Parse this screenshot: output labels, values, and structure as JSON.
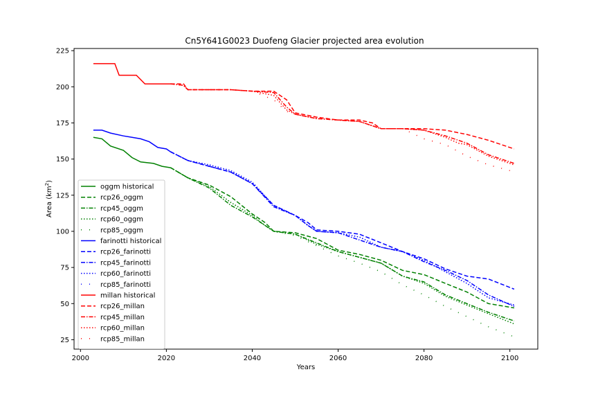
{
  "chart_data": {
    "type": "line",
    "title": "Cn5Y641G0023 Duofeng Glacier projected area evolution",
    "xlabel": "Years",
    "ylabel_main": "Area (km",
    "ylabel_sup": "2",
    "ylabel_close": ")",
    "xlim": [
      1998.5,
      2106.5
    ],
    "ylim": [
      18.5,
      226.5
    ],
    "xticks": [
      2000,
      2020,
      2040,
      2060,
      2080,
      2100
    ],
    "yticks": [
      25,
      50,
      75,
      100,
      125,
      150,
      175,
      200,
      225
    ],
    "legend_position": "lower-left",
    "series": [
      {
        "name": "oggm historical",
        "color": "#008000",
        "dash": "solid",
        "x": [
          2003,
          2005,
          2007,
          2010,
          2012,
          2014,
          2017,
          2019,
          2021
        ],
        "y": [
          165,
          164,
          159,
          156,
          151,
          148,
          147,
          145,
          144
        ]
      },
      {
        "name": "rcp26_oggm",
        "color": "#008000",
        "dash": "dashed",
        "x": [
          2021,
          2025,
          2030,
          2035,
          2040,
          2043,
          2045,
          2050,
          2055,
          2060,
          2065,
          2070,
          2075,
          2080,
          2085,
          2090,
          2095,
          2101
        ],
        "y": [
          144,
          137,
          132,
          124,
          112,
          106,
          100,
          99,
          95,
          87,
          84,
          80,
          73,
          70,
          64,
          58,
          50,
          47
        ]
      },
      {
        "name": "rcp45_oggm",
        "color": "#008000",
        "dash": "dashdot",
        "x": [
          2021,
          2025,
          2030,
          2035,
          2040,
          2043,
          2045,
          2050,
          2055,
          2060,
          2065,
          2070,
          2075,
          2080,
          2085,
          2090,
          2095,
          2101
        ],
        "y": [
          144,
          137,
          130,
          118,
          110,
          104,
          100,
          98,
          92,
          86,
          82,
          78,
          69,
          65,
          56,
          50,
          44,
          38
        ]
      },
      {
        "name": "rcp60_oggm",
        "color": "#008000",
        "dash": "dotted",
        "x": [
          2021,
          2025,
          2030,
          2035,
          2040,
          2043,
          2045,
          2050,
          2055,
          2060,
          2065,
          2070,
          2075,
          2080,
          2085,
          2090,
          2095,
          2101
        ],
        "y": [
          144,
          137,
          131,
          120,
          111,
          104,
          100,
          98,
          91,
          86,
          82,
          78,
          69,
          64,
          55,
          49,
          43,
          36
        ]
      },
      {
        "name": "rcp85_oggm",
        "color": "#008000",
        "dash": "sparse",
        "x": [
          2021,
          2025,
          2030,
          2035,
          2040,
          2043,
          2045,
          2050,
          2055,
          2060,
          2065,
          2070,
          2075,
          2080,
          2085,
          2090,
          2095,
          2101
        ],
        "y": [
          144,
          137,
          131,
          120,
          111,
          104,
          100,
          97,
          90,
          83,
          78,
          72,
          63,
          56,
          48,
          41,
          34,
          27
        ]
      },
      {
        "name": "farinotti historical",
        "color": "#0000ff",
        "dash": "solid",
        "x": [
          2003,
          2005,
          2007,
          2010,
          2012,
          2014,
          2016,
          2018,
          2020,
          2021
        ],
        "y": [
          170,
          170,
          168,
          166,
          165,
          164,
          162,
          158,
          157,
          155
        ]
      },
      {
        "name": "rcp26_farinotti",
        "color": "#0000ff",
        "dash": "dashed",
        "x": [
          2021,
          2025,
          2030,
          2035,
          2040,
          2045,
          2050,
          2053,
          2055,
          2060,
          2065,
          2070,
          2075,
          2080,
          2085,
          2090,
          2095,
          2101
        ],
        "y": [
          155,
          149,
          145,
          141,
          133,
          118,
          111,
          106,
          101,
          100,
          98,
          92,
          86,
          81,
          74,
          69,
          67,
          60
        ]
      },
      {
        "name": "rcp45_farinotti",
        "color": "#0000ff",
        "dash": "dashdot",
        "x": [
          2021,
          2025,
          2030,
          2035,
          2040,
          2045,
          2050,
          2053,
          2055,
          2060,
          2065,
          2070,
          2075,
          2080,
          2085,
          2090,
          2095,
          2101
        ],
        "y": [
          155,
          149,
          145,
          141,
          133,
          117,
          111,
          104,
          100,
          99,
          94,
          89,
          86,
          79,
          73,
          66,
          56,
          48
        ]
      },
      {
        "name": "rcp60_farinotti",
        "color": "#0000ff",
        "dash": "dotted",
        "x": [
          2021,
          2025,
          2030,
          2035,
          2040,
          2045,
          2050,
          2053,
          2055,
          2060,
          2065,
          2070,
          2075,
          2080,
          2085,
          2090,
          2095,
          2101
        ],
        "y": [
          155,
          149,
          146,
          142,
          134,
          118,
          111,
          104,
          100,
          99,
          96,
          89,
          86,
          80,
          72,
          64,
          54,
          49
        ]
      },
      {
        "name": "rcp85_farinotti",
        "color": "#0000ff",
        "dash": "sparse",
        "x": [
          2021,
          2025,
          2030,
          2035,
          2040,
          2045,
          2050,
          2053,
          2055,
          2060,
          2065,
          2070,
          2075,
          2080,
          2085,
          2090,
          2095,
          2101
        ],
        "y": [
          155,
          149,
          146,
          142,
          134,
          118,
          111,
          104,
          100,
          99,
          96,
          89,
          86,
          80,
          72,
          64,
          54,
          49
        ]
      },
      {
        "name": "millan historical",
        "color": "#ff0000",
        "dash": "solid",
        "x": [
          2003,
          2006,
          2008,
          2009,
          2011,
          2013,
          2015,
          2017,
          2021
        ],
        "y": [
          216,
          216,
          216,
          208,
          208,
          208,
          202,
          202,
          202
        ]
      },
      {
        "name": "rcp26_millan",
        "color": "#ff0000",
        "dash": "dashed",
        "x": [
          2021,
          2024,
          2025,
          2030,
          2035,
          2040,
          2045,
          2048,
          2050,
          2055,
          2060,
          2065,
          2068,
          2070,
          2075,
          2080,
          2085,
          2090,
          2095,
          2101
        ],
        "y": [
          202,
          202,
          198,
          198,
          198,
          197,
          197,
          191,
          182,
          179,
          177,
          177,
          175,
          171,
          171,
          171,
          170,
          167,
          163,
          157
        ]
      },
      {
        "name": "rcp45_millan",
        "color": "#ff0000",
        "dash": "dashdot",
        "x": [
          2021,
          2024,
          2025,
          2030,
          2035,
          2040,
          2045,
          2048,
          2050,
          2055,
          2060,
          2065,
          2070,
          2075,
          2080,
          2085,
          2088,
          2090,
          2095,
          2101
        ],
        "y": [
          202,
          201,
          198,
          198,
          198,
          197,
          196,
          186,
          181,
          178,
          177,
          176,
          171,
          171,
          170,
          166,
          163,
          161,
          153,
          147
        ]
      },
      {
        "name": "rcp60_millan",
        "color": "#ff0000",
        "dash": "dotted",
        "x": [
          2021,
          2024,
          2025,
          2030,
          2035,
          2040,
          2045,
          2048,
          2050,
          2055,
          2060,
          2065,
          2070,
          2075,
          2080,
          2085,
          2088,
          2090,
          2095,
          2101
        ],
        "y": [
          202,
          201,
          198,
          198,
          198,
          197,
          194,
          184,
          181,
          178,
          177,
          176,
          171,
          171,
          170,
          165,
          161,
          160,
          152,
          146
        ]
      },
      {
        "name": "rcp85_millan",
        "color": "#ff0000",
        "dash": "sparse",
        "x": [
          2021,
          2024,
          2025,
          2030,
          2035,
          2040,
          2045,
          2048,
          2050,
          2055,
          2060,
          2065,
          2070,
          2075,
          2080,
          2085,
          2090,
          2095,
          2100
        ],
        "y": [
          202,
          201,
          198,
          198,
          198,
          197,
          191,
          183,
          181,
          178,
          177,
          176,
          171,
          171,
          164,
          160,
          152,
          146,
          142
        ]
      }
    ]
  }
}
